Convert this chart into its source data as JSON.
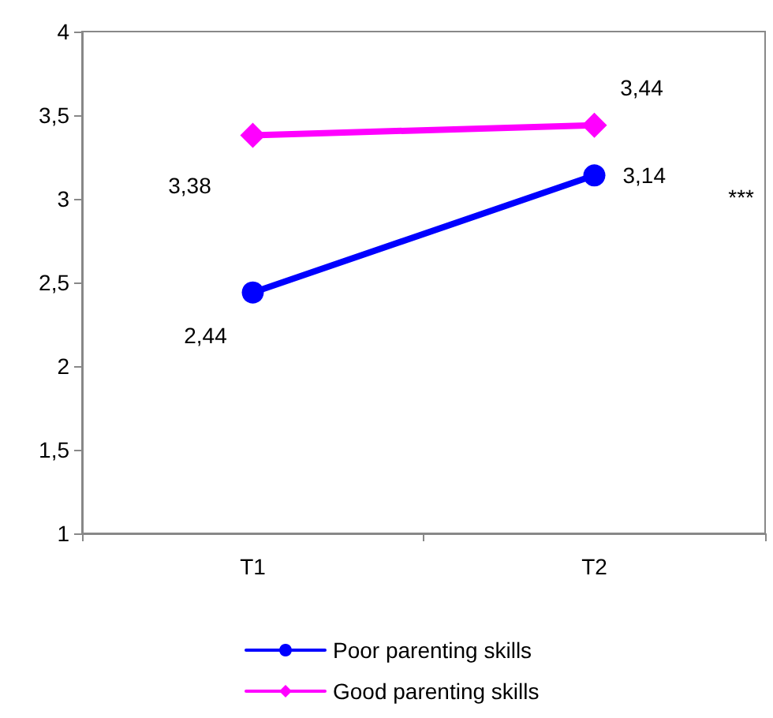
{
  "chart_data": {
    "type": "line",
    "categories": [
      "T1",
      "T2"
    ],
    "series": [
      {
        "name": "Poor parenting skills",
        "color": "#0000ff",
        "marker": "circle",
        "values": [
          2.44,
          3.14
        ],
        "value_labels": [
          "2,44",
          "3,14"
        ]
      },
      {
        "name": "Good parenting skills",
        "color": "#ff00ff",
        "marker": "diamond",
        "values": [
          3.38,
          3.44
        ],
        "value_labels": [
          "3,38",
          "3,44"
        ]
      }
    ],
    "ylim": [
      1,
      4
    ],
    "yticks": [
      1,
      {
        "value": 1.5,
        "label": "1,5"
      },
      2,
      {
        "value": 2.5,
        "label": "2,5"
      },
      3,
      {
        "value": 3.5,
        "label": "3,5"
      },
      4
    ],
    "annotations": [
      "***"
    ],
    "grid": false,
    "legend": "bottom",
    "line_style": "solid"
  }
}
